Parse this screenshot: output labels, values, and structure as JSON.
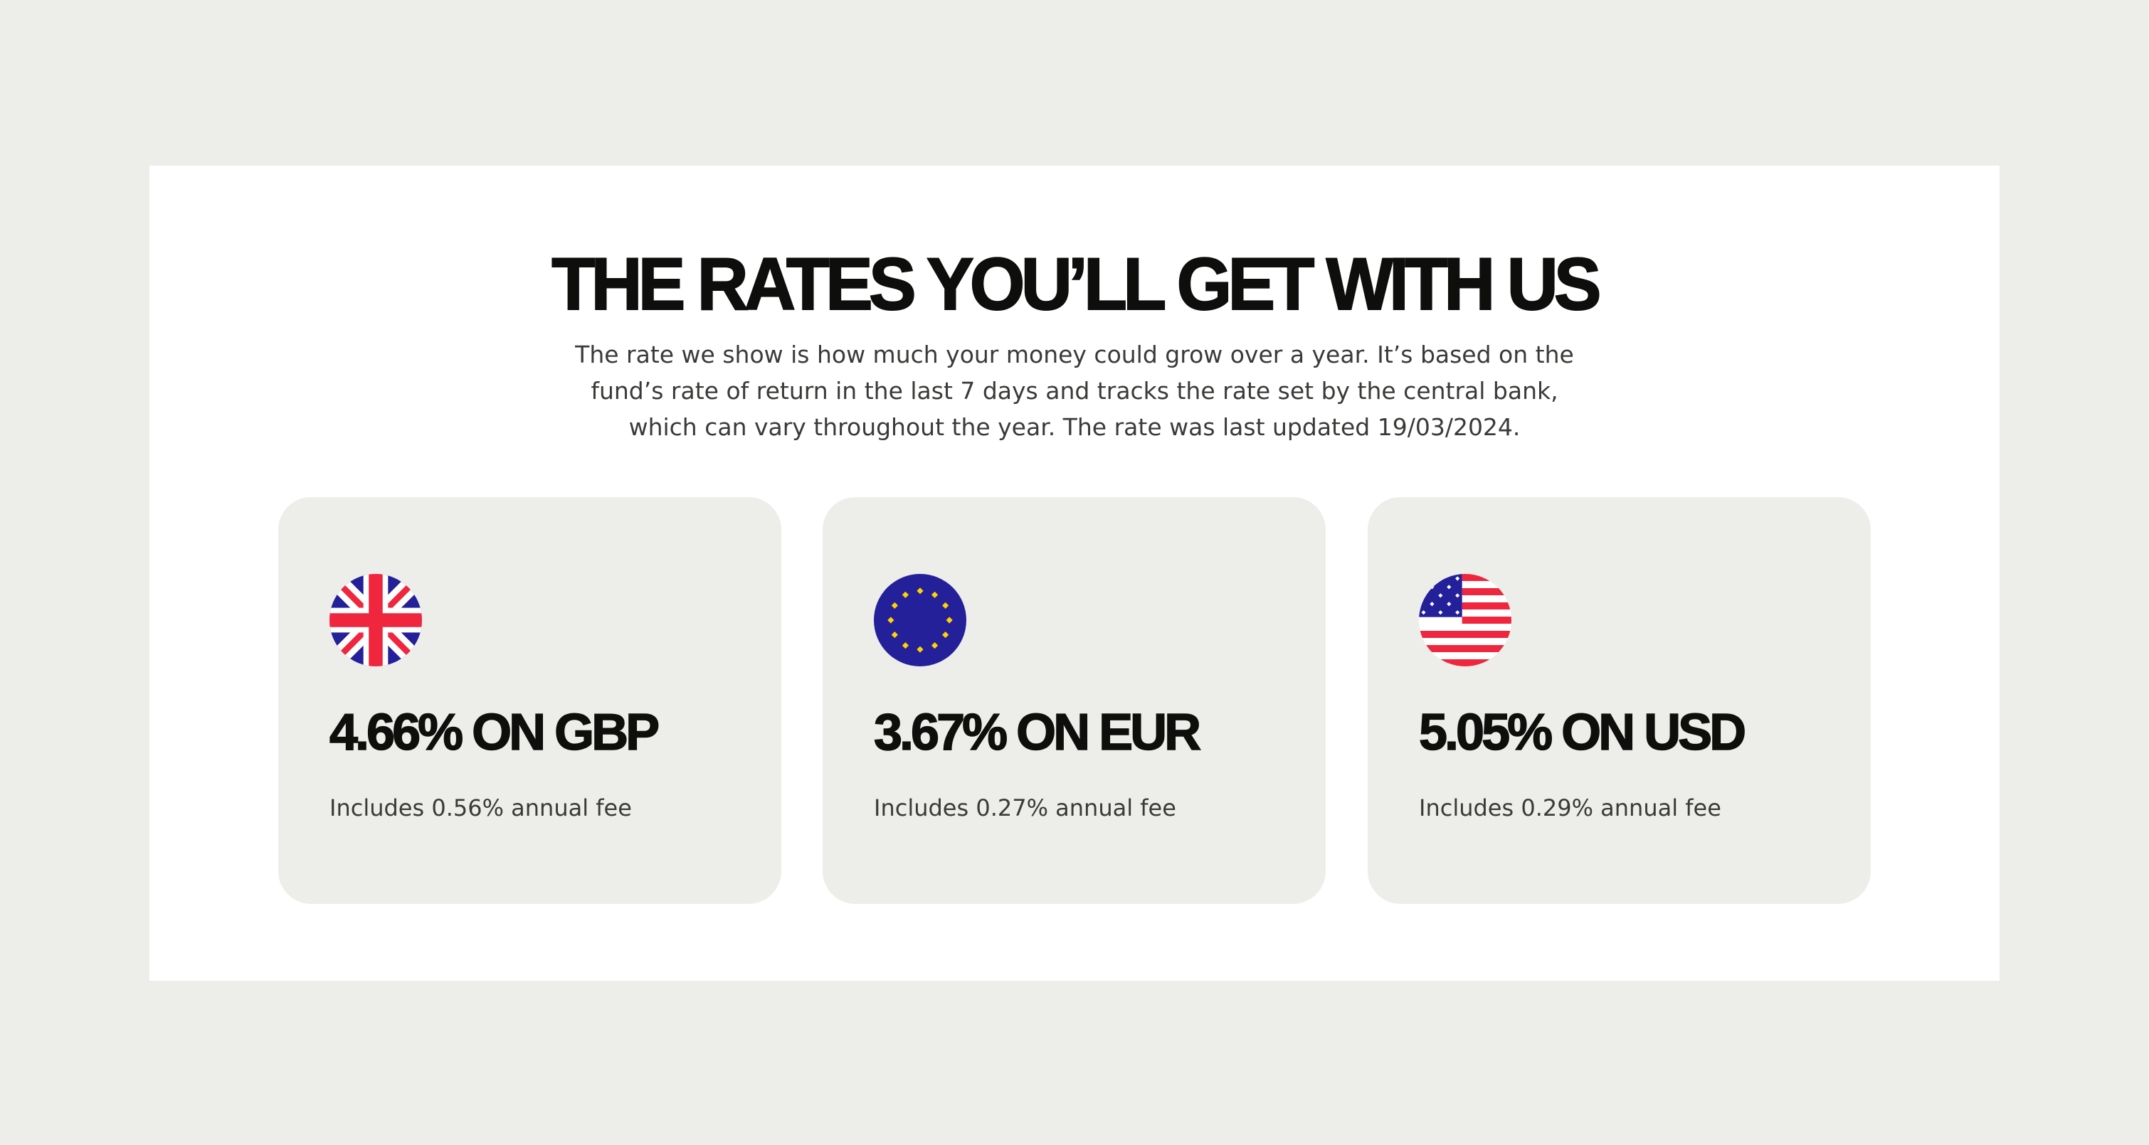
{
  "heading": "THE RATES YOU’LL GET WITH US",
  "description": {
    "line1": "The rate we show is how much your money could grow over a year. It’s based on the",
    "line2": "fund’s rate of return in the last 7 days and tracks the rate set by the central bank,",
    "line3": "which can vary throughout the year. The rate was last updated 19/03/2024."
  },
  "cards": [
    {
      "flag": "uk-flag-icon",
      "rate": "4.66% ON GBP",
      "fee": "Includes 0.56% annual fee"
    },
    {
      "flag": "eu-flag-icon",
      "rate": "3.67% ON EUR",
      "fee": "Includes 0.27% annual fee"
    },
    {
      "flag": "us-flag-icon",
      "rate": "5.05% ON USD",
      "fee": "Includes 0.29% annual fee"
    }
  ],
  "colors": {
    "background": "#edeeea",
    "navy": "#23209a",
    "red": "#f0253e",
    "star": "#ffd200"
  }
}
